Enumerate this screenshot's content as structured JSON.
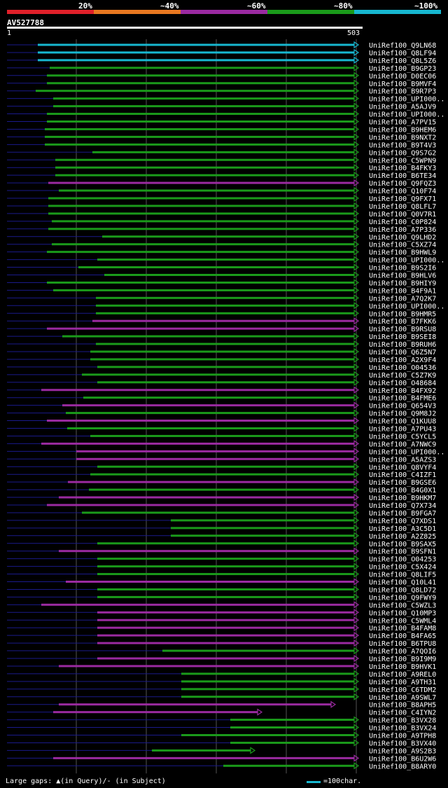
{
  "legend": [
    {
      "label": "20%",
      "color": "#e0202a"
    },
    {
      "label": "~40%",
      "color": "#e87820"
    },
    {
      "label": "~60%",
      "color": "#9a2aa0"
    },
    {
      "label": "~80%",
      "color": "#1a9a1a"
    },
    {
      "label": "~100%",
      "color": "#17b7d0"
    }
  ],
  "query_id": "AV527788",
  "ruler": {
    "start": "1",
    "end": "503"
  },
  "colors": {
    "c100": "#17b7d0",
    "c80": "#1a9a1a",
    "c60": "#9a2aa0",
    "line": "#1a1a8a",
    "grid": "#555555"
  },
  "chart_data": {
    "type": "alignment",
    "query_length": 503,
    "hits": [
      {
        "name": "UniRef100_Q9LN68",
        "start": 45,
        "end": 503,
        "identity": "100"
      },
      {
        "name": "UniRef100_Q8LF94",
        "start": 45,
        "end": 503,
        "identity": "100"
      },
      {
        "name": "UniRef100_Q8L5Z6",
        "start": 45,
        "end": 503,
        "identity": "100"
      },
      {
        "name": "UniRef100_B9GP23",
        "start": 62,
        "end": 503,
        "identity": "80"
      },
      {
        "name": "UniRef100_D0EC06",
        "start": 58,
        "end": 503,
        "identity": "80"
      },
      {
        "name": "UniRef100_B9MVF4",
        "start": 58,
        "end": 503,
        "identity": "80"
      },
      {
        "name": "UniRef100_B9R7P3",
        "start": 42,
        "end": 503,
        "identity": "80"
      },
      {
        "name": "UniRef100_UPI000..",
        "start": 67,
        "end": 503,
        "identity": "80"
      },
      {
        "name": "UniRef100_A5AJV9",
        "start": 67,
        "end": 503,
        "identity": "80"
      },
      {
        "name": "UniRef100_UPI000..",
        "start": 58,
        "end": 503,
        "identity": "80"
      },
      {
        "name": "UniRef100_A7PV15",
        "start": 58,
        "end": 503,
        "identity": "80"
      },
      {
        "name": "UniRef100_B9HEM6",
        "start": 55,
        "end": 503,
        "identity": "80"
      },
      {
        "name": "UniRef100_B9NXT2",
        "start": 55,
        "end": 503,
        "identity": "80"
      },
      {
        "name": "UniRef100_B9T4V3",
        "start": 55,
        "end": 503,
        "identity": "80"
      },
      {
        "name": "UniRef100_Q9S7G2",
        "start": 123,
        "end": 503,
        "identity": "80"
      },
      {
        "name": "UniRef100_C5WPN9",
        "start": 70,
        "end": 503,
        "identity": "80"
      },
      {
        "name": "UniRef100_B4FKY3",
        "start": 70,
        "end": 503,
        "identity": "80"
      },
      {
        "name": "UniRef100_B6TE34",
        "start": 70,
        "end": 503,
        "identity": "80"
      },
      {
        "name": "UniRef100_Q9FQZ3",
        "start": 60,
        "end": 503,
        "identity": "60"
      },
      {
        "name": "UniRef100_Q10F74",
        "start": 75,
        "end": 503,
        "identity": "80"
      },
      {
        "name": "UniRef100_Q9FX71",
        "start": 60,
        "end": 503,
        "identity": "80"
      },
      {
        "name": "UniRef100_Q8LFL7",
        "start": 60,
        "end": 503,
        "identity": "80"
      },
      {
        "name": "UniRef100_Q0V7R1",
        "start": 60,
        "end": 503,
        "identity": "80"
      },
      {
        "name": "UniRef100_C0P824",
        "start": 65,
        "end": 503,
        "identity": "80"
      },
      {
        "name": "UniRef100_A7P336",
        "start": 60,
        "end": 503,
        "identity": "80"
      },
      {
        "name": "UniRef100_Q9LHD2",
        "start": 137,
        "end": 503,
        "identity": "80"
      },
      {
        "name": "UniRef100_C5XZ74",
        "start": 65,
        "end": 503,
        "identity": "80"
      },
      {
        "name": "UniRef100_B9HWL9",
        "start": 58,
        "end": 503,
        "identity": "80"
      },
      {
        "name": "UniRef100_UPI000..",
        "start": 130,
        "end": 503,
        "identity": "80"
      },
      {
        "name": "UniRef100_B9S2I6",
        "start": 103,
        "end": 503,
        "identity": "80"
      },
      {
        "name": "UniRef100_B9HLV6",
        "start": 140,
        "end": 503,
        "identity": "80"
      },
      {
        "name": "UniRef100_B9HIY9",
        "start": 58,
        "end": 503,
        "identity": "80"
      },
      {
        "name": "UniRef100_B4F9A1",
        "start": 67,
        "end": 503,
        "identity": "80"
      },
      {
        "name": "UniRef100_A7Q2K7",
        "start": 128,
        "end": 503,
        "identity": "80"
      },
      {
        "name": "UniRef100_UPI000..",
        "start": 128,
        "end": 503,
        "identity": "80"
      },
      {
        "name": "UniRef100_B9HMR5",
        "start": 128,
        "end": 503,
        "identity": "80"
      },
      {
        "name": "UniRef100_B7FKK6",
        "start": 123,
        "end": 503,
        "identity": "60"
      },
      {
        "name": "UniRef100_B9RSU8",
        "start": 58,
        "end": 503,
        "identity": "60"
      },
      {
        "name": "UniRef100_B9SEI8",
        "start": 80,
        "end": 503,
        "identity": "80"
      },
      {
        "name": "UniRef100_B9RUH6",
        "start": 128,
        "end": 503,
        "identity": "80"
      },
      {
        "name": "UniRef100_Q6Z5N7",
        "start": 120,
        "end": 503,
        "identity": "80"
      },
      {
        "name": "UniRef100_A2X9F4",
        "start": 120,
        "end": 503,
        "identity": "80"
      },
      {
        "name": "UniRef100_O04536",
        "start": 130,
        "end": 503,
        "identity": "80"
      },
      {
        "name": "UniRef100_C5Z7K9",
        "start": 108,
        "end": 503,
        "identity": "80"
      },
      {
        "name": "UniRef100_O48684",
        "start": 130,
        "end": 503,
        "identity": "80"
      },
      {
        "name": "UniRef100_B4FX92",
        "start": 50,
        "end": 503,
        "identity": "60"
      },
      {
        "name": "UniRef100_B4FME6",
        "start": 110,
        "end": 503,
        "identity": "80"
      },
      {
        "name": "UniRef100_Q654V3",
        "start": 80,
        "end": 503,
        "identity": "60"
      },
      {
        "name": "UniRef100_Q9M8J2",
        "start": 85,
        "end": 503,
        "identity": "80"
      },
      {
        "name": "UniRef100_Q1KUU8",
        "start": 58,
        "end": 503,
        "identity": "60"
      },
      {
        "name": "UniRef100_A7PU43",
        "start": 87,
        "end": 503,
        "identity": "80"
      },
      {
        "name": "UniRef100_C5YCL5",
        "start": 120,
        "end": 503,
        "identity": "80"
      },
      {
        "name": "UniRef100_A7NWC9",
        "start": 50,
        "end": 503,
        "identity": "60"
      },
      {
        "name": "UniRef100_UPI000..",
        "start": 100,
        "end": 503,
        "identity": "60"
      },
      {
        "name": "UniRef100_A5AZS3",
        "start": 100,
        "end": 503,
        "identity": "60"
      },
      {
        "name": "UniRef100_Q8VYF4",
        "start": 130,
        "end": 503,
        "identity": "80"
      },
      {
        "name": "UniRef100_C4IZF1",
        "start": 120,
        "end": 503,
        "identity": "80"
      },
      {
        "name": "UniRef100_B9GSE6",
        "start": 88,
        "end": 503,
        "identity": "60"
      },
      {
        "name": "UniRef100_B4G0X1",
        "start": 118,
        "end": 503,
        "identity": "80"
      },
      {
        "name": "UniRef100_B9HKM7",
        "start": 75,
        "end": 503,
        "identity": "60"
      },
      {
        "name": "UniRef100_Q7X734",
        "start": 58,
        "end": 503,
        "identity": "60"
      },
      {
        "name": "UniRef100_B9FGA7",
        "start": 108,
        "end": 503,
        "identity": "80"
      },
      {
        "name": "UniRef100_Q7XDS1",
        "start": 235,
        "end": 503,
        "identity": "80"
      },
      {
        "name": "UniRef100_A3C5D1",
        "start": 235,
        "end": 503,
        "identity": "80"
      },
      {
        "name": "UniRef100_A2Z825",
        "start": 235,
        "end": 503,
        "identity": "80"
      },
      {
        "name": "UniRef100_B9SAX5",
        "start": 130,
        "end": 503,
        "identity": "80"
      },
      {
        "name": "UniRef100_B9SFN1",
        "start": 75,
        "end": 503,
        "identity": "60"
      },
      {
        "name": "UniRef100_O04253",
        "start": 130,
        "end": 503,
        "identity": "80"
      },
      {
        "name": "UniRef100_C5X424",
        "start": 130,
        "end": 503,
        "identity": "80"
      },
      {
        "name": "UniRef100_Q8LIF5",
        "start": 130,
        "end": 503,
        "identity": "80"
      },
      {
        "name": "UniRef100_Q10L41",
        "start": 85,
        "end": 503,
        "identity": "60"
      },
      {
        "name": "UniRef100_Q8LD72",
        "start": 130,
        "end": 503,
        "identity": "80"
      },
      {
        "name": "UniRef100_Q9FWY9",
        "start": 130,
        "end": 503,
        "identity": "80"
      },
      {
        "name": "UniRef100_C5WZL3",
        "start": 50,
        "end": 503,
        "identity": "60"
      },
      {
        "name": "UniRef100_Q10MP3",
        "start": 130,
        "end": 503,
        "identity": "60"
      },
      {
        "name": "UniRef100_C5WML4",
        "start": 130,
        "end": 503,
        "identity": "60"
      },
      {
        "name": "UniRef100_B4FAM8",
        "start": 130,
        "end": 503,
        "identity": "60"
      },
      {
        "name": "UniRef100_B4FA65",
        "start": 130,
        "end": 503,
        "identity": "60"
      },
      {
        "name": "UniRef100_B6TPU8",
        "start": 130,
        "end": 503,
        "identity": "60"
      },
      {
        "name": "UniRef100_A7QOI6",
        "start": 223,
        "end": 503,
        "identity": "80"
      },
      {
        "name": "UniRef100_B9I9M9",
        "start": 130,
        "end": 503,
        "identity": "60"
      },
      {
        "name": "UniRef100_B9HVK1",
        "start": 75,
        "end": 503,
        "identity": "60"
      },
      {
        "name": "UniRef100_A9REL0",
        "start": 250,
        "end": 503,
        "identity": "80"
      },
      {
        "name": "UniRef100_A9TH31",
        "start": 250,
        "end": 503,
        "identity": "80"
      },
      {
        "name": "UniRef100_C6TDM2",
        "start": 250,
        "end": 503,
        "identity": "80"
      },
      {
        "name": "UniRef100_A9SWL7",
        "start": 250,
        "end": 503,
        "identity": "80"
      },
      {
        "name": "UniRef100_B8APH5",
        "start": 75,
        "end": 470,
        "identity": "60"
      },
      {
        "name": "UniRef100_C4IYN2",
        "start": 67,
        "end": 365,
        "identity": "60"
      },
      {
        "name": "UniRef100_B3VX28",
        "start": 320,
        "end": 503,
        "identity": "80"
      },
      {
        "name": "UniRef100_B3VX24",
        "start": 320,
        "end": 503,
        "identity": "80"
      },
      {
        "name": "UniRef100_A9TPH8",
        "start": 250,
        "end": 503,
        "identity": "80"
      },
      {
        "name": "UniRef100_B3VX40",
        "start": 320,
        "end": 503,
        "identity": "80"
      },
      {
        "name": "UniRef100_A9S2B3",
        "start": 208,
        "end": 355,
        "identity": "80"
      },
      {
        "name": "UniRef100_B6U2W6",
        "start": 67,
        "end": 503,
        "identity": "60"
      },
      {
        "name": "UniRef100_B8ARY0",
        "start": 310,
        "end": 503,
        "identity": "80"
      }
    ]
  },
  "footer": {
    "left": "Large gaps: ▲(in Query)/- (in Subject)",
    "right": "=100char."
  }
}
